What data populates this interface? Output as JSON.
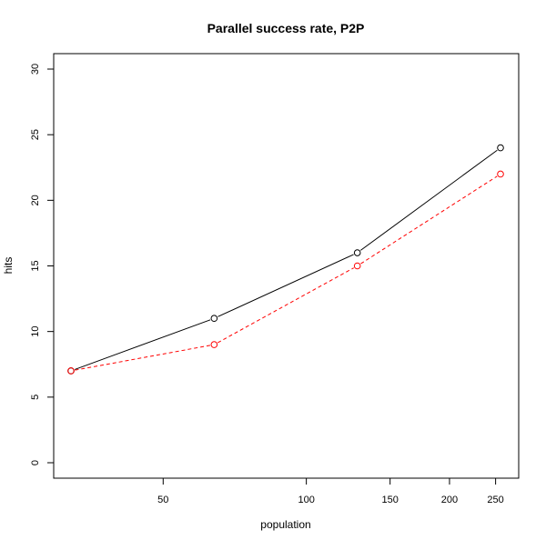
{
  "chart_data": {
    "type": "line",
    "title": "Parallel success rate, P2P",
    "xlabel": "population",
    "ylabel": "hits",
    "x_scale": "log",
    "x": [
      32,
      64,
      128,
      256
    ],
    "xlim": [
      30,
      270
    ],
    "ylim": [
      0,
      30
    ],
    "x_ticks": [
      50,
      100,
      150,
      200,
      250
    ],
    "x_tick_labels": [
      "50",
      "100",
      "150",
      "200",
      "250"
    ],
    "y_ticks": [
      0,
      5,
      10,
      15,
      20,
      25,
      30
    ],
    "y_tick_labels": [
      "0",
      "5",
      "10",
      "15",
      "20",
      "25",
      "30"
    ],
    "grid": false,
    "series": [
      {
        "values": [
          7,
          11,
          16,
          24
        ],
        "color": "#000000",
        "line_style": "solid",
        "marker": "open-circle"
      },
      {
        "values": [
          7,
          9,
          15,
          22
        ],
        "color": "#ff0000",
        "line_style": "dashed",
        "marker": "open-circle"
      }
    ]
  }
}
